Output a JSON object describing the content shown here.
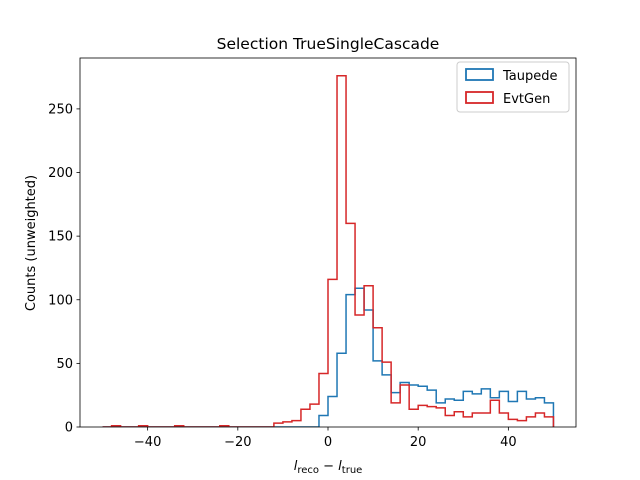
{
  "chart_data": {
    "type": "step-histogram",
    "title": "Selection TrueSingleCascade",
    "xlabel": {
      "main1": "l",
      "sub1": "reco",
      "op": " − ",
      "main2": "l",
      "sub2": "true"
    },
    "ylabel": "Counts (unweighted)",
    "xlim": [
      -55,
      55
    ],
    "ylim": [
      0,
      290
    ],
    "xticks": [
      -40,
      -20,
      0,
      20,
      40
    ],
    "xtick_labels": [
      "−40",
      "−20",
      "0",
      "20",
      "40"
    ],
    "yticks": [
      0,
      50,
      100,
      150,
      200,
      250
    ],
    "ytick_labels": [
      "0",
      "50",
      "100",
      "150",
      "200",
      "250"
    ],
    "grid": false,
    "legend_position": "upper right",
    "bin_edges": [
      -50,
      -48,
      -46,
      -44,
      -42,
      -40,
      -38,
      -36,
      -34,
      -32,
      -30,
      -28,
      -26,
      -24,
      -22,
      -20,
      -18,
      -16,
      -14,
      -12,
      -10,
      -8,
      -6,
      -4,
      -2,
      0,
      2,
      4,
      6,
      8,
      10,
      12,
      14,
      16,
      18,
      20,
      22,
      24,
      26,
      28,
      30,
      32,
      34,
      36,
      38,
      40,
      42,
      44,
      46,
      48,
      50
    ],
    "series": [
      {
        "name": "Taupede",
        "color": "#1f77b4",
        "values": [
          0,
          0,
          0,
          0,
          0,
          0,
          0,
          0,
          0,
          0,
          0,
          0,
          0,
          0,
          0,
          0,
          0,
          0,
          0,
          0,
          0,
          0,
          0,
          0,
          9,
          24,
          58,
          104,
          109,
          92,
          52,
          41,
          27,
          35,
          33,
          32,
          29,
          19,
          22,
          21,
          28,
          26,
          30,
          23,
          28,
          20,
          28,
          22,
          23,
          19
        ]
      },
      {
        "name": "EvtGen",
        "color": "#d62728",
        "values": [
          0,
          1,
          0,
          0,
          1,
          0,
          0,
          0,
          1,
          0,
          0,
          0,
          0,
          1,
          0,
          0,
          0,
          0,
          0,
          3,
          4,
          5,
          14,
          18,
          42,
          116,
          276,
          160,
          88,
          111,
          78,
          51,
          19,
          33,
          14,
          17,
          16,
          15,
          9,
          12,
          8,
          11,
          11,
          21,
          11,
          6,
          5,
          8,
          11,
          8
        ]
      }
    ]
  }
}
